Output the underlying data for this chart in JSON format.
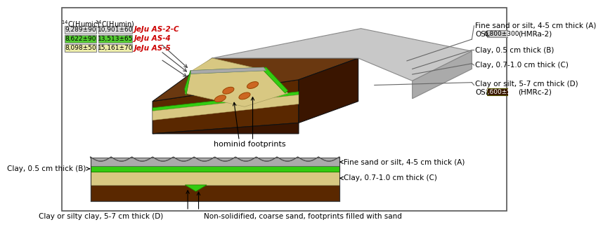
{
  "bg_color": "#ffffff",
  "table_rows": [
    {
      "humic": "9,289±90",
      "humin": "10,901±60",
      "label": "JeJu AS-2-C",
      "humic_bg": "#dddddd",
      "humin_bg": "#dddddd"
    },
    {
      "humic": "8,622±90",
      "humin": "13,513±65",
      "label": "JeJu AS-4",
      "humic_bg": "#55cc33",
      "humin_bg": "#55cc33"
    },
    {
      "humic": "8,098±50",
      "humin": "15,161±70",
      "label": "JeJu AS-5",
      "humic_bg": "#eeeeaa",
      "humin_bg": "#eeeeaa"
    }
  ],
  "label_color": "#cc0000",
  "osl_top": "6,800±300",
  "osl_top_bg": "#cccccc",
  "osl_bot": "7,600±500",
  "osl_bot_bg": "#3a1800",
  "osl_bot_fg": "#ffffff",
  "hominid_label": "hominid footprints",
  "colors": {
    "dark_brown": "#5a2800",
    "very_dark_brown": "#3a1500",
    "light_tan": "#d8c882",
    "gray_slab": "#aaaaaa",
    "gray_slab_light": "#c8c8c8",
    "green_bright": "#33cc11",
    "green_dark": "#228800",
    "light_yellow_green": "#c8d890",
    "orange_footprint": "#cc6622",
    "cliff_shadow": "#6a3810"
  }
}
